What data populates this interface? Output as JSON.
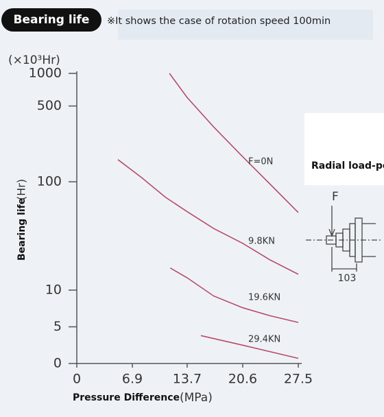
{
  "chart_data": {
    "type": "line",
    "badge": "Bearing life",
    "note": "※It shows the case of rotation speed 100min",
    "y_unit": "(×10³Hr)",
    "y_title": "Bearing life",
    "y_title_unit": "(Hr)",
    "x_title": "Pressure Difference",
    "x_title_unit": "(MPa)",
    "xlim": [
      0,
      27.5
    ],
    "xticks": [
      0,
      6.9,
      13.7,
      20.6,
      27.5
    ],
    "ylim": [
      0,
      1000
    ],
    "yticks": [
      0,
      5,
      10,
      100,
      500,
      1000
    ],
    "series": [
      {
        "name": "F=0N",
        "color": "#b94a68",
        "x": [
          11.5,
          13.7,
          17,
          20.6,
          24,
          27.5
        ],
        "values": [
          1000,
          600,
          320,
          170,
          95,
          52
        ]
      },
      {
        "name": "9.8KN",
        "color": "#b94a68",
        "x": [
          5.1,
          8,
          11,
          13.7,
          17,
          20.6,
          24,
          27.5
        ],
        "values": [
          160,
          110,
          72,
          53,
          37,
          27,
          19,
          14
        ]
      },
      {
        "name": "19.6KN",
        "color": "#b94a68",
        "x": [
          11.6,
          13.7,
          17,
          20.6,
          24,
          27.5
        ],
        "values": [
          16,
          13,
          9.2,
          7.6,
          6.5,
          5.6
        ]
      },
      {
        "name": "29.4KN",
        "color": "#b94a68",
        "x": [
          15.4,
          20.6,
          27.5
        ],
        "values": [
          3.8,
          2.5,
          0.7
        ]
      }
    ],
    "diagram": {
      "title": "Radial load-position",
      "force": "F",
      "distance": "103"
    }
  }
}
